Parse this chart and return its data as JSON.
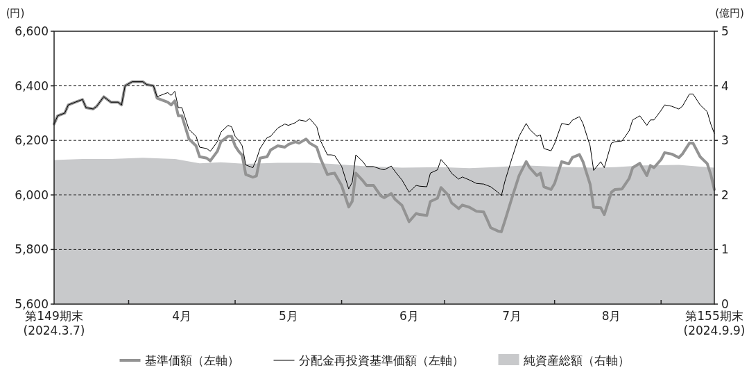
{
  "chart_data": {
    "type": "line",
    "ylabel": "(円)",
    "y2label": "(億円)",
    "xlim": [
      "2024-03-07",
      "2024-09-09"
    ],
    "xticks": [
      {
        "value": "2024-03-07",
        "label": "第149期末\n(2024.3.7)"
      },
      {
        "value": "2024-03-28",
        "label": null
      },
      {
        "value": "2024-04-12",
        "label": "4月"
      },
      {
        "value": "2024-04-27",
        "label": null
      },
      {
        "value": "2024-05-12",
        "label": "5月"
      },
      {
        "value": "2024-05-27",
        "label": null
      },
      {
        "value": "2024-06-15",
        "label": "6月"
      },
      {
        "value": "2024-06-25",
        "label": null
      },
      {
        "value": "2024-07-14",
        "label": "7月"
      },
      {
        "value": "2024-07-26",
        "label": null
      },
      {
        "value": "2024-08-11",
        "label": "8月"
      },
      {
        "value": "2024-08-25",
        "label": null
      },
      {
        "value": "2024-09-09",
        "label": "第155期末\n(2024.9.9)"
      }
    ],
    "ylim": [
      5600,
      6600
    ],
    "yticks": [
      {
        "value": 5600,
        "label": "5,600"
      },
      {
        "value": 5800,
        "label": "5,800"
      },
      {
        "value": 6000,
        "label": "6,000"
      },
      {
        "value": 6200,
        "label": "6,200"
      },
      {
        "value": 6400,
        "label": "6,400"
      },
      {
        "value": 6600,
        "label": "6,600"
      }
    ],
    "y2lim": [
      0,
      5
    ],
    "y2ticks": [
      0,
      1,
      2,
      3,
      4,
      5
    ],
    "grid": "y",
    "legend": "bottom",
    "x": [
      "2024-03-07",
      "2024-03-08",
      "2024-03-10",
      "2024-03-11",
      "2024-03-13",
      "2024-03-15",
      "2024-03-16",
      "2024-03-18",
      "2024-03-19",
      "2024-03-21",
      "2024-03-23",
      "2024-03-25",
      "2024-03-26",
      "2024-03-27",
      "2024-03-29",
      "2024-04-01",
      "2024-04-02",
      "2024-04-04",
      "2024-04-05",
      "2024-04-08",
      "2024-04-09",
      "2024-04-10",
      "2024-04-11",
      "2024-04-12",
      "2024-04-14",
      "2024-04-16",
      "2024-04-17",
      "2024-04-19",
      "2024-04-20",
      "2024-04-22",
      "2024-04-23",
      "2024-04-25",
      "2024-04-26",
      "2024-04-27",
      "2024-04-28",
      "2024-04-29",
      "2024-04-30",
      "2024-05-02",
      "2024-05-03",
      "2024-05-04",
      "2024-05-06",
      "2024-05-07",
      "2024-05-09",
      "2024-05-11",
      "2024-05-12",
      "2024-05-14",
      "2024-05-15",
      "2024-05-17",
      "2024-05-18",
      "2024-05-20",
      "2024-05-21",
      "2024-05-23",
      "2024-05-24",
      "2024-05-25",
      "2024-05-27",
      "2024-05-29",
      "2024-05-30",
      "2024-05-31",
      "2024-06-02",
      "2024-06-03",
      "2024-06-05",
      "2024-06-07",
      "2024-06-08",
      "2024-06-10",
      "2024-06-11",
      "2024-06-13",
      "2024-06-15",
      "2024-06-17",
      "2024-06-18",
      "2024-06-20",
      "2024-06-21",
      "2024-06-23",
      "2024-06-24",
      "2024-06-26",
      "2024-06-27",
      "2024-06-29",
      "2024-06-30",
      "2024-07-02",
      "2024-07-04",
      "2024-07-06",
      "2024-07-07",
      "2024-07-08",
      "2024-07-10",
      "2024-07-11",
      "2024-07-12",
      "2024-07-14",
      "2024-07-16",
      "2024-07-18",
      "2024-07-19",
      "2024-07-21",
      "2024-07-22",
      "2024-07-23",
      "2024-07-25",
      "2024-07-26",
      "2024-07-28",
      "2024-07-30",
      "2024-07-31",
      "2024-08-02",
      "2024-08-03",
      "2024-08-05",
      "2024-08-06",
      "2024-08-08",
      "2024-08-09",
      "2024-08-11",
      "2024-08-12",
      "2024-08-14",
      "2024-08-16",
      "2024-08-17",
      "2024-08-19",
      "2024-08-21",
      "2024-08-22",
      "2024-08-23",
      "2024-08-25",
      "2024-08-26",
      "2024-08-28",
      "2024-08-30",
      "2024-08-31",
      "2024-09-02",
      "2024-09-03",
      "2024-09-05",
      "2024-09-07",
      "2024-09-08",
      "2024-09-09"
    ],
    "series": [
      {
        "name": "純資産総額（右軸）",
        "type": "area",
        "axis": "y2",
        "color": "#c8c9cb",
        "x": [
          "2024-03-07",
          "2024-03-15",
          "2024-03-23",
          "2024-04-01",
          "2024-04-10",
          "2024-04-17",
          "2024-04-23",
          "2024-04-30",
          "2024-05-09",
          "2024-05-18",
          "2024-05-24",
          "2024-06-02",
          "2024-06-13",
          "2024-06-24",
          "2024-07-02",
          "2024-07-09",
          "2024-07-18",
          "2024-07-26",
          "2024-08-06",
          "2024-08-12",
          "2024-08-20",
          "2024-08-30",
          "2024-09-05",
          "2024-09-09"
        ],
        "values": [
          2.64,
          2.66,
          2.66,
          2.68,
          2.66,
          2.58,
          2.6,
          2.57,
          2.59,
          2.59,
          2.57,
          2.53,
          2.5,
          2.51,
          2.49,
          2.51,
          2.54,
          2.52,
          2.5,
          2.51,
          2.54,
          2.55,
          2.52,
          2.5
        ]
      },
      {
        "name": "基準価額（左軸）",
        "color": "#939393",
        "values": [
          6260,
          6290,
          6300,
          6330,
          6340,
          6350,
          6320,
          6315,
          6325,
          6360,
          6340,
          6340,
          6330,
          6400,
          6415,
          6415,
          6405,
          6400,
          6355,
          6340,
          6330,
          6345,
          6290,
          6290,
          6205,
          6180,
          6140,
          6135,
          6125,
          6160,
          6195,
          6215,
          6215,
          6180,
          6160,
          6145,
          6075,
          6065,
          6070,
          6135,
          6140,
          6165,
          6180,
          6175,
          6185,
          6195,
          6190,
          6205,
          6190,
          6175,
          6135,
          6075,
          6078,
          6080,
          6035,
          5956,
          5977,
          6080,
          6052,
          6035,
          6035,
          5997,
          5990,
          6005,
          5985,
          5962,
          5902,
          5932,
          5928,
          5925,
          5976,
          5988,
          6027,
          6000,
          5971,
          5950,
          5963,
          5955,
          5940,
          5938,
          5910,
          5880,
          5868,
          5865,
          5905,
          5990,
          6071,
          6122,
          6100,
          6071,
          6080,
          6030,
          6020,
          6042,
          6122,
          6114,
          6137,
          6148,
          6122,
          6040,
          5955,
          5953,
          5928,
          6010,
          6020,
          6022,
          6060,
          6100,
          6116,
          6071,
          6108,
          6100,
          6130,
          6155,
          6150,
          6137,
          6150,
          6190,
          6190,
          6140,
          6115,
          6075,
          6020
        ]
      },
      {
        "name": "分配金再投資基準価額（左軸）",
        "color": "#000000",
        "values": [
          6260,
          6290,
          6300,
          6330,
          6340,
          6350,
          6320,
          6315,
          6325,
          6360,
          6340,
          6340,
          6330,
          6400,
          6415,
          6415,
          6405,
          6400,
          6360,
          6375,
          6365,
          6380,
          6320,
          6320,
          6240,
          6215,
          6175,
          6170,
          6160,
          6195,
          6230,
          6255,
          6250,
          6215,
          6200,
          6180,
          6110,
          6100,
          6130,
          6170,
          6210,
          6215,
          6245,
          6260,
          6255,
          6265,
          6275,
          6270,
          6280,
          6250,
          6200,
          6147,
          6147,
          6145,
          6105,
          6022,
          6047,
          6147,
          6122,
          6104,
          6104,
          6095,
          6092,
          6106,
          6087,
          6055,
          6010,
          6035,
          6032,
          6030,
          6080,
          6092,
          6130,
          6100,
          6079,
          6058,
          6066,
          6055,
          6042,
          6040,
          6035,
          6030,
          6010,
          5997,
          6050,
          6135,
          6215,
          6262,
          6240,
          6215,
          6220,
          6170,
          6162,
          6188,
          6262,
          6257,
          6274,
          6287,
          6262,
          6180,
          6090,
          6122,
          6100,
          6190,
          6195,
          6198,
          6235,
          6275,
          6290,
          6255,
          6275,
          6275,
          6310,
          6330,
          6325,
          6315,
          6325,
          6370,
          6370,
          6330,
          6305,
          6260,
          6225
        ]
      }
    ]
  }
}
